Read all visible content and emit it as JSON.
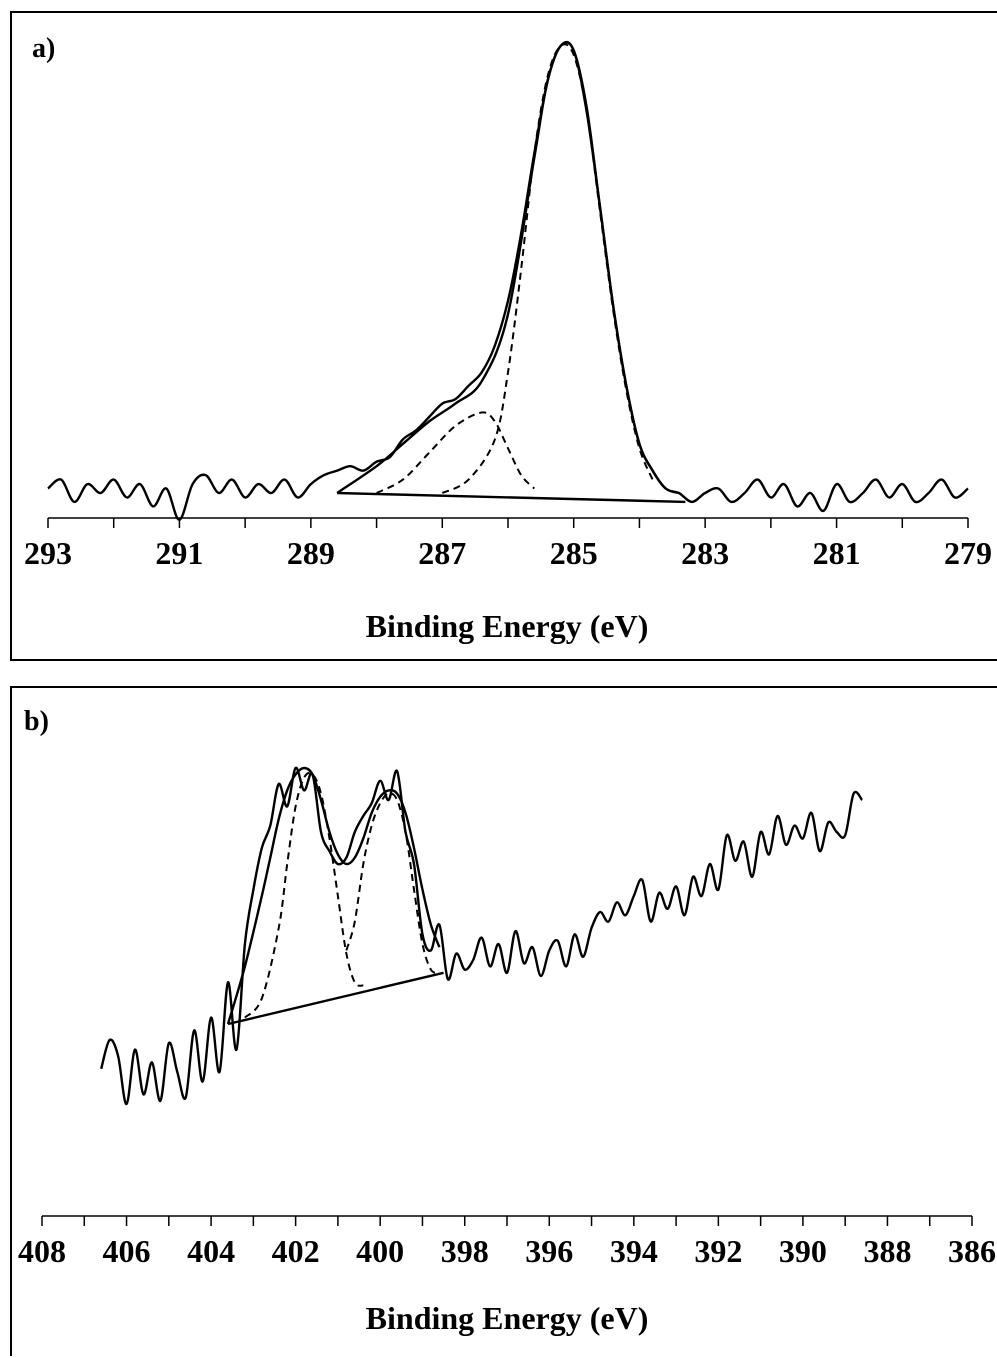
{
  "chart_data": [
    {
      "panel": "a)",
      "type": "line",
      "xlabel": "Binding Energy (eV)",
      "ylabel": "",
      "xlim": [
        293,
        279
      ],
      "x_reversed": true,
      "xticks": [
        293,
        291,
        289,
        287,
        285,
        283,
        281,
        279
      ],
      "grid": false,
      "series": [
        {
          "style": "solid",
          "role": "measured",
          "x": [
            293.0,
            292.8,
            292.6,
            292.4,
            292.2,
            292.0,
            291.8,
            291.6,
            291.4,
            291.2,
            291.0,
            290.8,
            290.6,
            290.4,
            290.2,
            290.0,
            289.8,
            289.6,
            289.4,
            289.2,
            289.0,
            288.8,
            288.6,
            288.4,
            288.2,
            288.0,
            287.8,
            287.6,
            287.4,
            287.2,
            287.0,
            286.8,
            286.6,
            286.4,
            286.2,
            286.0,
            285.8,
            285.6,
            285.4,
            285.2,
            285.0,
            284.8,
            284.6,
            284.4,
            284.2,
            284.0,
            283.8,
            283.6,
            283.4,
            283.2,
            283.0,
            282.8,
            282.6,
            282.4,
            282.2,
            282.0,
            281.8,
            281.6,
            281.4,
            281.2,
            281.0,
            280.8,
            280.6,
            280.4,
            280.2,
            280.0,
            279.8,
            279.6,
            279.4,
            279.2,
            279.0
          ],
          "y": [
            0.01,
            0.03,
            -0.02,
            0.02,
            0.0,
            0.03,
            -0.01,
            0.02,
            -0.03,
            0.01,
            -0.06,
            0.02,
            0.04,
            0.0,
            0.03,
            -0.01,
            0.02,
            0.0,
            0.03,
            -0.01,
            0.02,
            0.04,
            0.05,
            0.06,
            0.05,
            0.07,
            0.08,
            0.12,
            0.14,
            0.17,
            0.2,
            0.21,
            0.24,
            0.27,
            0.33,
            0.43,
            0.58,
            0.76,
            0.92,
            1.0,
            0.99,
            0.85,
            0.64,
            0.42,
            0.24,
            0.11,
            0.05,
            0.01,
            0.0,
            -0.02,
            0.0,
            0.01,
            -0.02,
            0.0,
            0.03,
            -0.01,
            0.02,
            -0.03,
            0.0,
            -0.04,
            0.02,
            -0.02,
            0.0,
            0.03,
            -0.01,
            0.02,
            -0.02,
            0.0,
            0.03,
            -0.01,
            0.01
          ]
        },
        {
          "style": "solid",
          "role": "envelope",
          "x": [
            288.6,
            288.0,
            287.6,
            287.2,
            286.8,
            286.4,
            286.0,
            285.6,
            285.4,
            285.2,
            285.0,
            284.8,
            284.6,
            284.4,
            284.2,
            284.0,
            283.8,
            283.6,
            283.4
          ],
          "y": [
            0.0,
            0.06,
            0.11,
            0.16,
            0.2,
            0.25,
            0.4,
            0.75,
            0.92,
            1.0,
            0.99,
            0.86,
            0.64,
            0.42,
            0.24,
            0.11,
            0.05,
            0.01,
            0.0
          ]
        },
        {
          "style": "dashed",
          "role": "component 1",
          "x": [
            288.0,
            287.6,
            287.2,
            286.8,
            286.4,
            286.2,
            286.0,
            285.8,
            285.6
          ],
          "y": [
            0.0,
            0.03,
            0.09,
            0.15,
            0.18,
            0.16,
            0.1,
            0.04,
            0.01
          ]
        },
        {
          "style": "dashed",
          "role": "component 2",
          "x": [
            287.0,
            286.6,
            286.2,
            286.0,
            285.8,
            285.6,
            285.4,
            285.2,
            285.0,
            284.8,
            284.6,
            284.4,
            284.2,
            284.0,
            283.8
          ],
          "y": [
            0.0,
            0.03,
            0.12,
            0.27,
            0.5,
            0.76,
            0.93,
            1.0,
            0.98,
            0.85,
            0.63,
            0.41,
            0.23,
            0.1,
            0.03
          ]
        },
        {
          "style": "solid",
          "role": "baseline",
          "x": [
            288.6,
            283.3
          ],
          "y": [
            0.0,
            -0.02
          ]
        }
      ]
    },
    {
      "panel": "b)",
      "type": "line",
      "xlabel": "Binding Energy (eV)",
      "ylabel": "",
      "xlim": [
        408,
        386
      ],
      "x_reversed": true,
      "xticks": [
        408,
        406,
        404,
        402,
        400,
        398,
        396,
        394,
        392,
        390,
        388,
        386
      ],
      "grid": false,
      "series": [
        {
          "style": "solid",
          "role": "measured",
          "x": [
            406.6,
            406.4,
            406.2,
            406.0,
            405.8,
            405.6,
            405.4,
            405.2,
            405.0,
            404.8,
            404.6,
            404.4,
            404.2,
            404.0,
            403.8,
            403.6,
            403.4,
            403.2,
            403.0,
            402.8,
            402.6,
            402.4,
            402.2,
            402.0,
            401.8,
            401.6,
            401.4,
            401.2,
            401.0,
            400.8,
            400.6,
            400.4,
            400.2,
            400.0,
            399.8,
            399.6,
            399.4,
            399.2,
            399.0,
            398.8,
            398.6,
            398.4,
            398.2,
            398.0,
            397.8,
            397.6,
            397.4,
            397.2,
            397.0,
            396.8,
            396.6,
            396.4,
            396.2,
            396.0,
            395.8,
            395.6,
            395.4,
            395.2,
            395.0,
            394.8,
            394.6,
            394.4,
            394.2,
            394.0,
            393.8,
            393.6,
            393.4,
            393.2,
            393.0,
            392.8,
            392.6,
            392.4,
            392.2,
            392.0,
            391.8,
            391.6,
            391.4,
            391.2,
            391.0,
            390.8,
            390.6,
            390.4,
            390.2,
            390.0,
            389.8,
            389.6,
            389.4,
            389.2,
            389.0,
            388.8,
            388.6
          ],
          "y": [
            0.06,
            0.15,
            0.1,
            -0.05,
            0.12,
            -0.02,
            0.08,
            -0.04,
            0.14,
            0.05,
            -0.03,
            0.18,
            0.02,
            0.22,
            0.05,
            0.33,
            0.12,
            0.45,
            0.62,
            0.75,
            0.82,
            0.95,
            0.88,
            1.0,
            0.93,
            0.98,
            0.8,
            0.74,
            0.7,
            0.72,
            0.8,
            0.85,
            0.89,
            0.96,
            0.9,
            0.99,
            0.8,
            0.7,
            0.48,
            0.43,
            0.51,
            0.34,
            0.42,
            0.37,
            0.4,
            0.47,
            0.38,
            0.45,
            0.36,
            0.49,
            0.39,
            0.44,
            0.35,
            0.43,
            0.46,
            0.38,
            0.48,
            0.41,
            0.5,
            0.55,
            0.52,
            0.58,
            0.54,
            0.6,
            0.65,
            0.52,
            0.61,
            0.56,
            0.63,
            0.54,
            0.66,
            0.6,
            0.7,
            0.62,
            0.79,
            0.71,
            0.77,
            0.66,
            0.8,
            0.73,
            0.85,
            0.76,
            0.82,
            0.78,
            0.86,
            0.74,
            0.83,
            0.8,
            0.79,
            0.92,
            0.9
          ]
        },
        {
          "style": "solid",
          "role": "envelope",
          "x": [
            403.6,
            403.2,
            402.8,
            402.6,
            402.4,
            402.2,
            402.0,
            401.8,
            401.6,
            401.4,
            401.2,
            401.0,
            400.8,
            400.6,
            400.4,
            400.2,
            400.0,
            399.8,
            399.6,
            399.4,
            399.2,
            399.0,
            398.8,
            398.6
          ],
          "y": [
            0.2,
            0.38,
            0.6,
            0.72,
            0.84,
            0.93,
            0.98,
            1.0,
            0.98,
            0.9,
            0.8,
            0.73,
            0.7,
            0.72,
            0.78,
            0.86,
            0.91,
            0.93,
            0.92,
            0.86,
            0.75,
            0.62,
            0.51,
            0.44
          ]
        },
        {
          "style": "dashed",
          "role": "component 1",
          "x": [
            403.2,
            402.8,
            402.4,
            402.2,
            402.0,
            401.8,
            401.6,
            401.4,
            401.2,
            401.0,
            400.8,
            400.6,
            400.4
          ],
          "y": [
            0.22,
            0.28,
            0.5,
            0.7,
            0.88,
            0.97,
            0.98,
            0.92,
            0.78,
            0.6,
            0.42,
            0.33,
            0.32
          ]
        },
        {
          "style": "dashed",
          "role": "component 2",
          "x": [
            400.8,
            400.6,
            400.4,
            400.2,
            400.0,
            399.8,
            399.6,
            399.4,
            399.2,
            399.0,
            398.8,
            398.6
          ],
          "y": [
            0.43,
            0.52,
            0.7,
            0.82,
            0.89,
            0.92,
            0.9,
            0.8,
            0.62,
            0.45,
            0.37,
            0.36
          ]
        },
        {
          "style": "solid",
          "role": "baseline",
          "x": [
            403.6,
            398.5
          ],
          "y": [
            0.2,
            0.36
          ]
        }
      ]
    }
  ]
}
